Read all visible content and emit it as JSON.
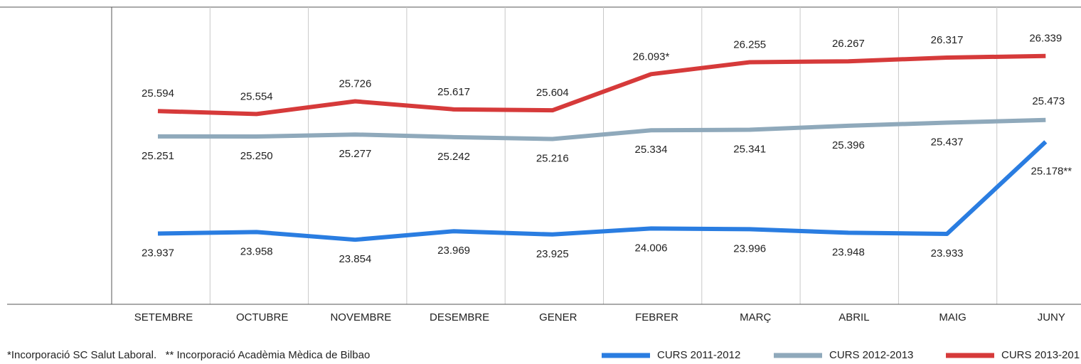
{
  "chart_data": {
    "type": "line",
    "categories": [
      "SETEMBRE",
      "OCTUBRE",
      "NOVEMBRE",
      "DESEMBRE",
      "GENER",
      "FEBRER",
      "MARÇ",
      "ABRIL",
      "MAIG",
      "JUNY"
    ],
    "series": [
      {
        "name": "CURS 2011-2012",
        "color": "#2a7de1",
        "values": [
          23937,
          23958,
          23854,
          23969,
          23925,
          24006,
          23996,
          23948,
          23933,
          25178
        ],
        "value_labels": [
          "23.937",
          "23.958",
          "23.854",
          "23.969",
          "23.925",
          "24.006",
          "23.996",
          "23.948",
          "23.933",
          "25.178**"
        ]
      },
      {
        "name": "CURS 2012-2013",
        "color": "#8fa9bb",
        "values": [
          25251,
          25250,
          25277,
          25242,
          25216,
          25334,
          25341,
          25396,
          25437,
          25473
        ],
        "value_labels": [
          "25.251",
          "25.250",
          "25.277",
          "25.242",
          "25.216",
          "25.334",
          "25.341",
          "25.396",
          "25.437",
          "25.473"
        ]
      },
      {
        "name": "CURS 2013-201",
        "color": "#d63a3a",
        "values": [
          25594,
          25554,
          25726,
          25617,
          25604,
          26093,
          26255,
          26267,
          26317,
          26339
        ],
        "value_labels": [
          "25.594",
          "25.554",
          "25.726",
          "25.617",
          "25.604",
          "26.093*",
          "26.255",
          "26.267",
          "26.317",
          "26.339"
        ]
      }
    ],
    "ylim": [
      23000,
      27000
    ],
    "annotations": [
      "*Incorporació SC Salut Laboral.   ** Incorporació Acadèmia Mèdica de Bilbao"
    ],
    "legend": "bottom-right"
  }
}
